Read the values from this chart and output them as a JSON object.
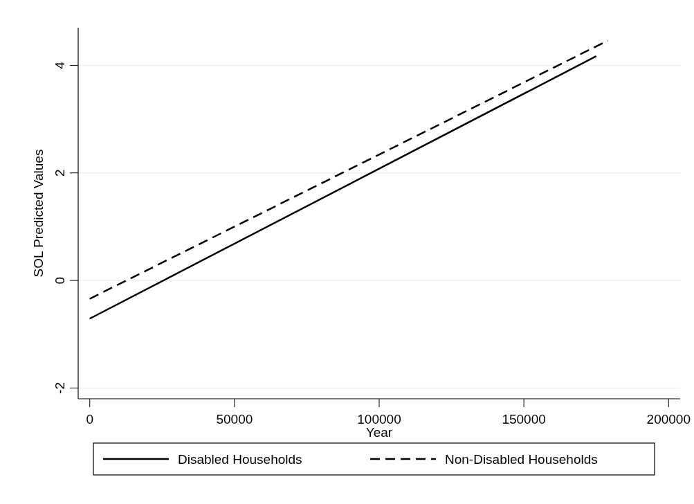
{
  "chart_data": {
    "type": "line",
    "xlabel": "Year",
    "ylabel": "SOL Predicted Values",
    "series": [
      {
        "name": "Disabled Households",
        "color": "#000000",
        "line_style": "solid",
        "x": [
          0,
          175000
        ],
        "values": [
          -0.71,
          4.17
        ]
      },
      {
        "name": "Non-Disabled Households",
        "color": "#000000",
        "line_style": "dashed",
        "x": [
          0,
          179000
        ],
        "values": [
          -0.34,
          4.46
        ]
      }
    ],
    "xlim": [
      -4000,
      204000
    ],
    "xticks": [
      0,
      50000,
      100000,
      150000,
      200000
    ],
    "ylim": [
      -2.2,
      4.7
    ],
    "yticks": [
      -2,
      0,
      2,
      4
    ],
    "grid": "y",
    "legend": "bottom",
    "marker": "none"
  }
}
